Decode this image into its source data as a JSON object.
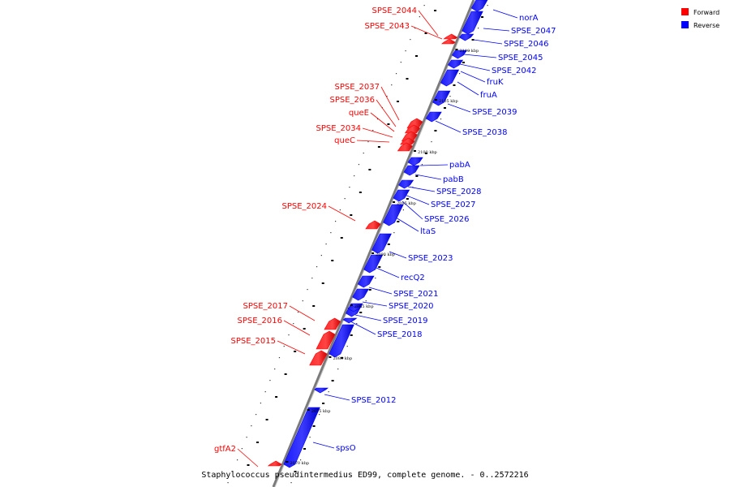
{
  "caption": "Staphylococcus pseudintermedius ED99, complete genome. - 0..2572216",
  "legend": [
    {
      "label": "Forward",
      "color": "#ff0000"
    },
    {
      "label": "Reverse",
      "color": "#0000ff"
    }
  ],
  "scale_marks": [
    "2110 kbp",
    "2105 kbp",
    "2100 kbp",
    "2095 kbp",
    "2090 kbp",
    "2085 kbp",
    "2080 kbp",
    "2075 kbp",
    "2070 kbp"
  ],
  "genes": [
    {
      "name": "norA",
      "strand": "reverse"
    },
    {
      "name": "SPSE_2047",
      "strand": "reverse"
    },
    {
      "name": "SPSE_2046",
      "strand": "reverse"
    },
    {
      "name": "SPSE_2045",
      "strand": "reverse"
    },
    {
      "name": "SPSE_2042",
      "strand": "reverse"
    },
    {
      "name": "fruK",
      "strand": "reverse"
    },
    {
      "name": "fruA",
      "strand": "reverse"
    },
    {
      "name": "SPSE_2039",
      "strand": "reverse"
    },
    {
      "name": "SPSE_2038",
      "strand": "reverse"
    },
    {
      "name": "pabA",
      "strand": "reverse"
    },
    {
      "name": "pabB",
      "strand": "reverse"
    },
    {
      "name": "SPSE_2028",
      "strand": "reverse"
    },
    {
      "name": "SPSE_2027",
      "strand": "reverse"
    },
    {
      "name": "SPSE_2026",
      "strand": "reverse"
    },
    {
      "name": "ltaS",
      "strand": "reverse"
    },
    {
      "name": "SPSE_2023",
      "strand": "reverse"
    },
    {
      "name": "recQ2",
      "strand": "reverse"
    },
    {
      "name": "SPSE_2021",
      "strand": "reverse"
    },
    {
      "name": "SPSE_2020",
      "strand": "reverse"
    },
    {
      "name": "SPSE_2019",
      "strand": "reverse"
    },
    {
      "name": "SPSE_2018",
      "strand": "reverse"
    },
    {
      "name": "SPSE_2012",
      "strand": "reverse"
    },
    {
      "name": "spsO",
      "strand": "reverse"
    },
    {
      "name": "SPSE_2044",
      "strand": "forward"
    },
    {
      "name": "SPSE_2043",
      "strand": "forward"
    },
    {
      "name": "SPSE_2037",
      "strand": "forward"
    },
    {
      "name": "SPSE_2036",
      "strand": "forward"
    },
    {
      "name": "queE",
      "strand": "forward"
    },
    {
      "name": "SPSE_2034",
      "strand": "forward"
    },
    {
      "name": "queC",
      "strand": "forward"
    },
    {
      "name": "SPSE_2024",
      "strand": "forward"
    },
    {
      "name": "SPSE_2017",
      "strand": "forward"
    },
    {
      "name": "SPSE_2016",
      "strand": "forward"
    },
    {
      "name": "SPSE_2015",
      "strand": "forward"
    },
    {
      "name": "gtfA2",
      "strand": "forward"
    }
  ]
}
